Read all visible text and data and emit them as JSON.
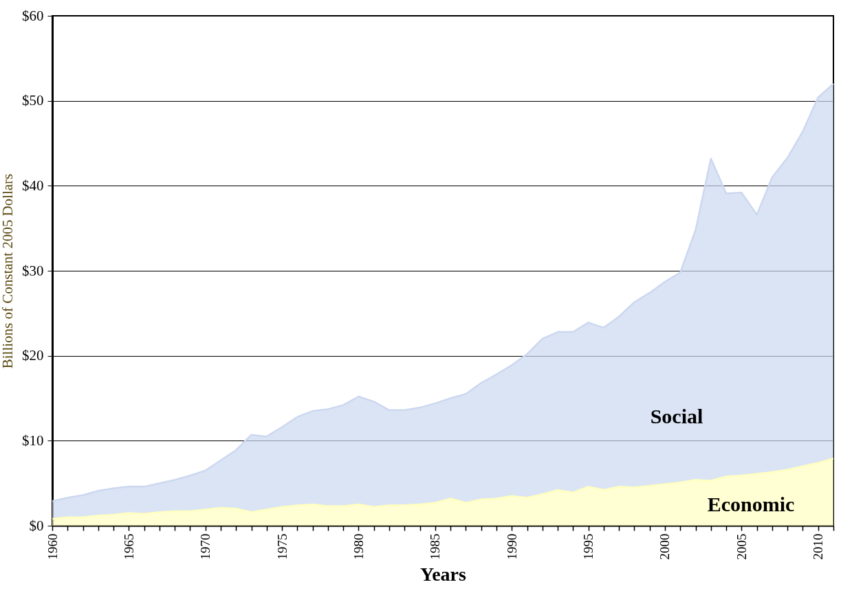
{
  "chart_data": {
    "type": "area",
    "stacked": true,
    "xlabel": "Years",
    "ylabel": "Billions of Constant 2005 Dollars",
    "x": [
      1960,
      1961,
      1962,
      1963,
      1964,
      1965,
      1966,
      1967,
      1968,
      1969,
      1970,
      1971,
      1972,
      1973,
      1974,
      1975,
      1976,
      1977,
      1978,
      1979,
      1980,
      1981,
      1982,
      1983,
      1984,
      1985,
      1986,
      1987,
      1988,
      1989,
      1990,
      1991,
      1992,
      1993,
      1994,
      1995,
      1996,
      1997,
      1998,
      1999,
      2000,
      2001,
      2002,
      2003,
      2004,
      2005,
      2006,
      2007,
      2008,
      2009,
      2010,
      2011
    ],
    "series": [
      {
        "name": "Economic",
        "color": "#ffffc0",
        "values": [
          0.8,
          1.0,
          1.0,
          1.2,
          1.3,
          1.5,
          1.4,
          1.6,
          1.7,
          1.7,
          1.9,
          2.1,
          2.0,
          1.6,
          1.9,
          2.2,
          2.4,
          2.5,
          2.3,
          2.3,
          2.5,
          2.2,
          2.4,
          2.4,
          2.5,
          2.7,
          3.2,
          2.7,
          3.1,
          3.2,
          3.5,
          3.3,
          3.7,
          4.2,
          3.9,
          4.6,
          4.2,
          4.6,
          4.5,
          4.7,
          4.9,
          5.1,
          5.4,
          5.3,
          5.8,
          5.9,
          6.1,
          6.3,
          6.6,
          7.0,
          7.4,
          7.9
        ]
      },
      {
        "name": "Social",
        "color": "#ccd8f0",
        "values": [
          2.1,
          2.3,
          2.6,
          2.9,
          3.1,
          3.1,
          3.2,
          3.4,
          3.7,
          4.2,
          4.6,
          5.6,
          6.9,
          9.1,
          8.6,
          9.4,
          10.4,
          11.0,
          11.4,
          11.9,
          12.7,
          12.4,
          11.2,
          11.2,
          11.4,
          11.7,
          11.8,
          12.8,
          13.7,
          14.6,
          15.4,
          16.9,
          18.3,
          18.6,
          18.9,
          19.3,
          19.1,
          20.0,
          21.8,
          22.7,
          23.8,
          24.7,
          29.4,
          37.9,
          33.3,
          33.3,
          30.5,
          34.7,
          36.7,
          39.4,
          43.0,
          44.1
        ]
      }
    ],
    "xlim": [
      1960,
      2011
    ],
    "xticks": [
      1960,
      {
        "value": 1961,
        "label": null
      },
      {
        "value": 1962,
        "label": null
      },
      {
        "value": 1963,
        "label": null
      },
      {
        "value": 1964,
        "label": null
      },
      1965,
      {
        "value": 1966,
        "label": null
      },
      {
        "value": 1967,
        "label": null
      },
      {
        "value": 1968,
        "label": null
      },
      {
        "value": 1969,
        "label": null
      },
      1970,
      {
        "value": 1971,
        "label": null
      },
      {
        "value": 1972,
        "label": null
      },
      {
        "value": 1973,
        "label": null
      },
      {
        "value": 1974,
        "label": null
      },
      1975,
      {
        "value": 1976,
        "label": null
      },
      {
        "value": 1977,
        "label": null
      },
      {
        "value": 1978,
        "label": null
      },
      {
        "value": 1979,
        "label": null
      },
      1980,
      {
        "value": 1981,
        "label": null
      },
      {
        "value": 1982,
        "label": null
      },
      {
        "value": 1983,
        "label": null
      },
      {
        "value": 1984,
        "label": null
      },
      1985,
      {
        "value": 1986,
        "label": null
      },
      {
        "value": 1987,
        "label": null
      },
      {
        "value": 1988,
        "label": null
      },
      {
        "value": 1989,
        "label": null
      },
      1990,
      {
        "value": 1991,
        "label": null
      },
      {
        "value": 1992,
        "label": null
      },
      {
        "value": 1993,
        "label": null
      },
      {
        "value": 1994,
        "label": null
      },
      1995,
      {
        "value": 1996,
        "label": null
      },
      {
        "value": 1997,
        "label": null
      },
      {
        "value": 1998,
        "label": null
      },
      {
        "value": 1999,
        "label": null
      },
      2000,
      {
        "value": 2001,
        "label": null
      },
      {
        "value": 2002,
        "label": null
      },
      {
        "value": 2003,
        "label": null
      },
      {
        "value": 2004,
        "label": null
      },
      2005,
      {
        "value": 2006,
        "label": null
      },
      {
        "value": 2007,
        "label": null
      },
      {
        "value": 2008,
        "label": null
      },
      {
        "value": 2009,
        "label": null
      },
      2010,
      {
        "value": 2011,
        "label": null
      }
    ],
    "ylim": [
      0,
      60
    ],
    "yticks": [
      {
        "value": 0,
        "label": "$0"
      },
      {
        "value": 10,
        "label": "$10"
      },
      {
        "value": 20,
        "label": "$20"
      },
      {
        "value": 30,
        "label": "$30"
      },
      {
        "value": 40,
        "label": "$40"
      },
      {
        "value": 50,
        "label": "$50"
      },
      {
        "value": 60,
        "label": "$60"
      }
    ],
    "grid": "y",
    "legend": false
  }
}
